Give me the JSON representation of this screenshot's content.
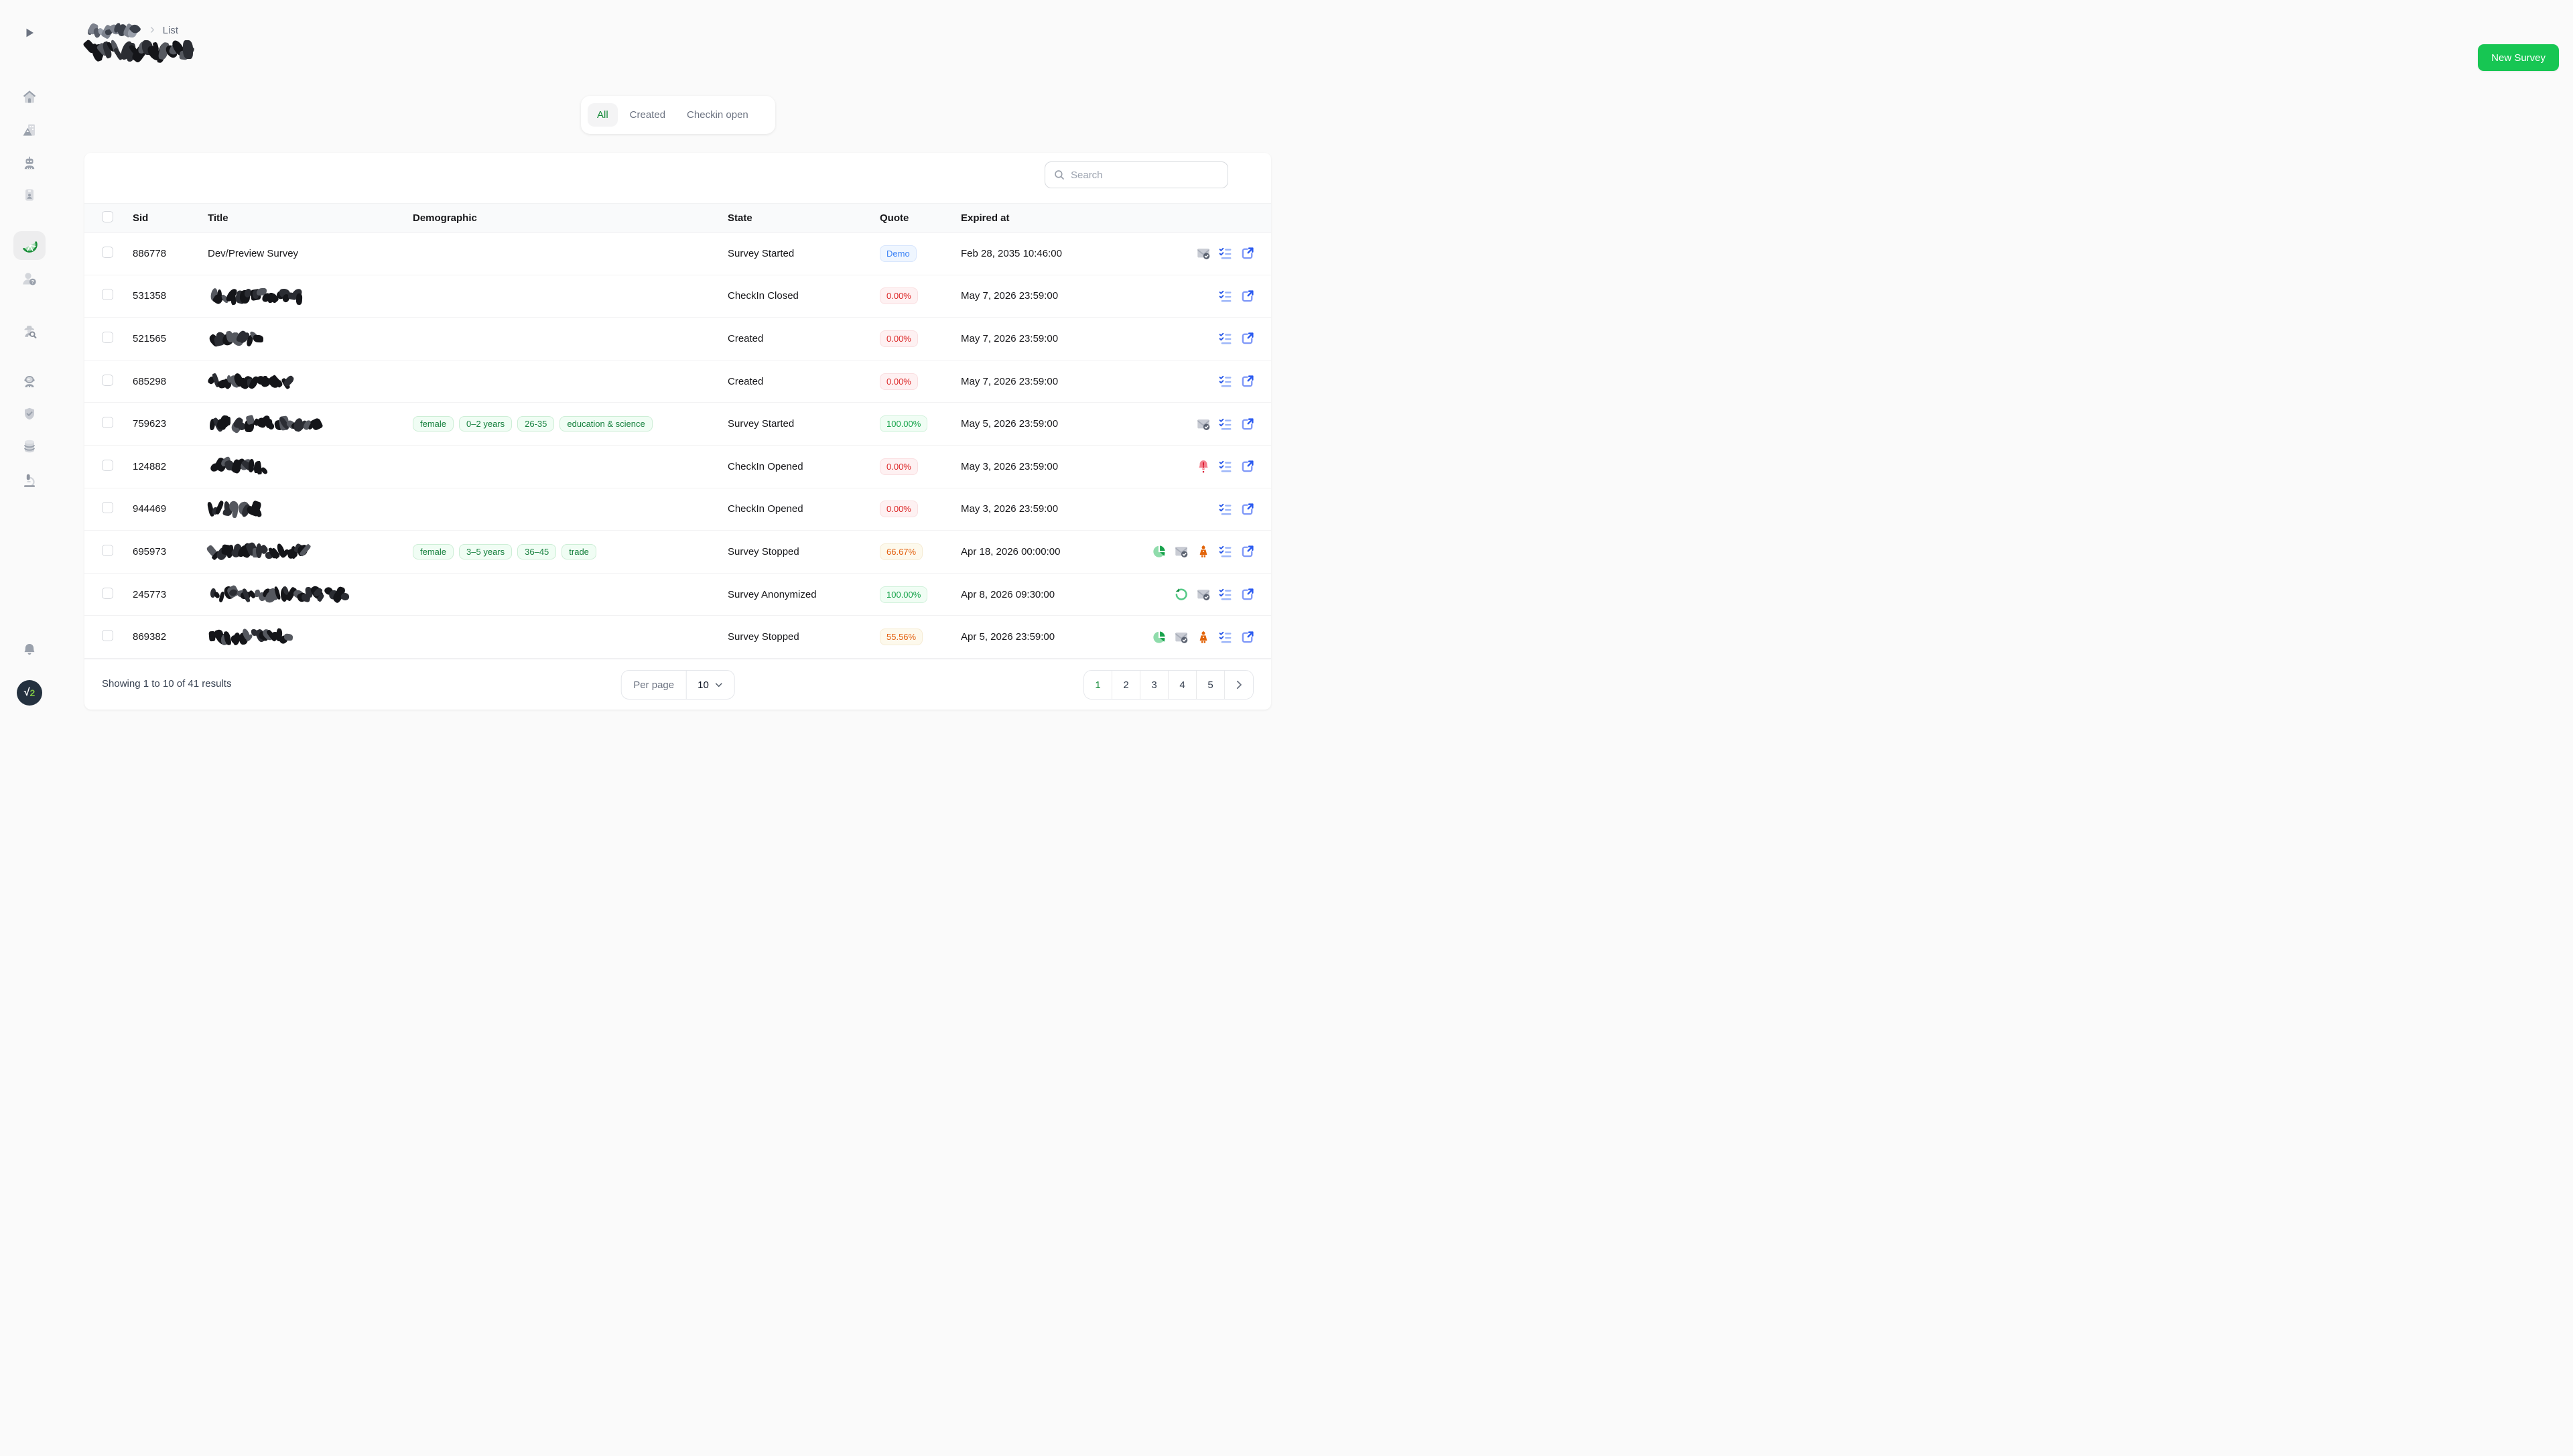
{
  "breadcrumb": {
    "first_segment_redacted": true,
    "current": "List"
  },
  "page": {
    "title_redacted": true
  },
  "header": {
    "new_survey_label": "New Survey"
  },
  "tabs": [
    {
      "label": "All",
      "active": true
    },
    {
      "label": "Created",
      "active": false
    },
    {
      "label": "Checkin open",
      "active": false
    }
  ],
  "toolbar": {
    "search_placeholder": "Search",
    "filter_icon": "funnel-icon",
    "filter_count": "0"
  },
  "colors": {
    "accent_green": "#17c653",
    "tab_active_green": "#148a38",
    "badge_blue": "#3c83f6",
    "badge_red": "#dc2626",
    "badge_green": "#16a34a",
    "badge_orange": "#e35f0e"
  },
  "table": {
    "columns": [
      "Sid",
      "Title",
      "Demographic",
      "State",
      "Quote",
      "Expired at"
    ],
    "rows": [
      {
        "sid": "886778",
        "title": "Dev/Preview Survey",
        "redacted": false,
        "scribble_width": 0,
        "demographics": [],
        "state": "Survey Started",
        "quote": {
          "label": "Demo",
          "variant": "demo"
        },
        "expired_at": "Feb 28, 2035 10:46:00",
        "actions": [
          "mail-check-icon",
          "checklist-icon",
          "external-link-icon"
        ]
      },
      {
        "sid": "531358",
        "title": "",
        "redacted": true,
        "scribble_width": 150,
        "demographics": [],
        "state": "CheckIn Closed",
        "quote": {
          "label": "0.00%",
          "variant": "red"
        },
        "expired_at": "May 7, 2026 23:59:00",
        "actions": [
          "checklist-icon",
          "external-link-icon"
        ]
      },
      {
        "sid": "521565",
        "title": "",
        "redacted": true,
        "scribble_width": 86,
        "demographics": [],
        "state": "Created",
        "quote": {
          "label": "0.00%",
          "variant": "red"
        },
        "expired_at": "May 7, 2026 23:59:00",
        "actions": [
          "checklist-icon",
          "external-link-icon"
        ]
      },
      {
        "sid": "685298",
        "title": "",
        "redacted": true,
        "scribble_width": 133,
        "demographics": [],
        "state": "Created",
        "quote": {
          "label": "0.00%",
          "variant": "red"
        },
        "expired_at": "May 7, 2026 23:59:00",
        "actions": [
          "checklist-icon",
          "external-link-icon"
        ]
      },
      {
        "sid": "759623",
        "title": "",
        "redacted": true,
        "scribble_width": 173,
        "demographics": [
          "female",
          "0–2 years",
          "26-35",
          "education & science"
        ],
        "state": "Survey Started",
        "quote": {
          "label": "100.00%",
          "variant": "green"
        },
        "expired_at": "May 5, 2026 23:59:00",
        "actions": [
          "mail-check-icon",
          "checklist-icon",
          "external-link-icon"
        ]
      },
      {
        "sid": "124882",
        "title": "",
        "redacted": true,
        "scribble_width": 96,
        "demographics": [],
        "state": "CheckIn Opened",
        "quote": {
          "label": "0.00%",
          "variant": "red"
        },
        "expired_at": "May 3, 2026 23:59:00",
        "actions": [
          "bell-alert-icon",
          "checklist-icon",
          "external-link-icon"
        ]
      },
      {
        "sid": "944469",
        "title": "",
        "redacted": true,
        "scribble_width": 86,
        "demographics": [],
        "state": "CheckIn Opened",
        "quote": {
          "label": "0.00%",
          "variant": "red"
        },
        "expired_at": "May 3, 2026 23:59:00",
        "actions": [
          "checklist-icon",
          "external-link-icon"
        ]
      },
      {
        "sid": "695973",
        "title": "",
        "redacted": true,
        "scribble_width": 158,
        "demographics": [
          "female",
          "3–5 years",
          "36–45",
          "trade"
        ],
        "state": "Survey Stopped",
        "quote": {
          "label": "66.67%",
          "variant": "orange"
        },
        "expired_at": "Apr 18, 2026 00:00:00",
        "actions": [
          "pie-chart-icon",
          "mail-check-icon",
          "robot-agent-icon",
          "checklist-icon",
          "external-link-icon"
        ]
      },
      {
        "sid": "245773",
        "title": "",
        "redacted": true,
        "scribble_width": 216,
        "demographics": [],
        "state": "Survey Anonymized",
        "quote": {
          "label": "100.00%",
          "variant": "green"
        },
        "expired_at": "Apr 8, 2026 09:30:00",
        "actions": [
          "undo-icon",
          "mail-check-icon",
          "checklist-icon",
          "external-link-icon"
        ]
      },
      {
        "sid": "869382",
        "title": "",
        "redacted": true,
        "scribble_width": 130,
        "demographics": [],
        "state": "Survey Stopped",
        "quote": {
          "label": "55.56%",
          "variant": "orange"
        },
        "expired_at": "Apr 5, 2026 23:59:00",
        "actions": [
          "pie-chart-icon",
          "mail-check-icon",
          "robot-agent-icon",
          "checklist-icon",
          "external-link-icon"
        ]
      }
    ]
  },
  "footer": {
    "showing": "Showing 1 to 10 of 41 results",
    "per_page_label": "Per page",
    "per_page_value": "10",
    "pages": [
      "1",
      "2",
      "3",
      "4",
      "5"
    ],
    "active_page": "1",
    "next_icon": "chevron-right-icon"
  },
  "sidebar": {
    "toggle": "expand-arrow-icon",
    "icons": [
      "home-icon",
      "organization-image-icon",
      "robot-icon",
      "id-card-icon",
      "lime-slice-icon",
      "user-question-icon",
      "detective-search-icon",
      "bot-head-icon",
      "shield-check-icon",
      "database-icon",
      "microscope-icon"
    ],
    "active_icon": "lime-slice-icon",
    "bottom": [
      "bell-icon",
      "avatar"
    ],
    "avatar_text": "√2"
  }
}
